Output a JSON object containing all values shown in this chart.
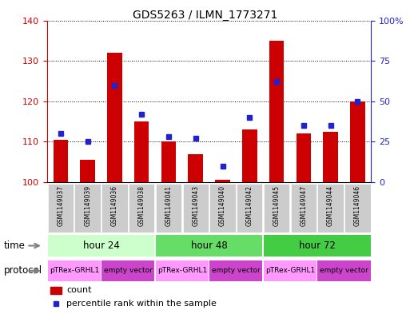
{
  "title": "GDS5263 / ILMN_1773271",
  "samples": [
    "GSM1149037",
    "GSM1149039",
    "GSM1149036",
    "GSM1149038",
    "GSM1149041",
    "GSM1149043",
    "GSM1149040",
    "GSM1149042",
    "GSM1149045",
    "GSM1149047",
    "GSM1149044",
    "GSM1149046"
  ],
  "counts": [
    110.5,
    105.5,
    132.0,
    115.0,
    110.0,
    107.0,
    100.5,
    113.0,
    135.0,
    112.0,
    112.5,
    120.0
  ],
  "percentiles": [
    30,
    25,
    60,
    42,
    28,
    27,
    10,
    40,
    62,
    35,
    35,
    50
  ],
  "ylim_left": [
    100,
    140
  ],
  "ylim_right": [
    0,
    100
  ],
  "yticks_left": [
    100,
    110,
    120,
    130,
    140
  ],
  "yticks_right": [
    0,
    25,
    50,
    75,
    100
  ],
  "bar_color": "#cc0000",
  "dot_color": "#2222cc",
  "time_groups": [
    {
      "label": "hour 24",
      "start": 0,
      "end": 4,
      "color": "#ccffcc"
    },
    {
      "label": "hour 48",
      "start": 4,
      "end": 8,
      "color": "#66dd66"
    },
    {
      "label": "hour 72",
      "start": 8,
      "end": 12,
      "color": "#44cc44"
    }
  ],
  "protocol_groups": [
    {
      "label": "pTRex-GRHL1",
      "start": 0,
      "end": 2,
      "color": "#ff99ff"
    },
    {
      "label": "empty vector",
      "start": 2,
      "end": 4,
      "color": "#cc44cc"
    },
    {
      "label": "pTRex-GRHL1",
      "start": 4,
      "end": 6,
      "color": "#ff99ff"
    },
    {
      "label": "empty vector",
      "start": 6,
      "end": 8,
      "color": "#cc44cc"
    },
    {
      "label": "pTRex-GRHL1",
      "start": 8,
      "end": 10,
      "color": "#ff99ff"
    },
    {
      "label": "empty vector",
      "start": 10,
      "end": 12,
      "color": "#cc44cc"
    }
  ],
  "sample_bg_color": "#cccccc",
  "fig_width": 5.13,
  "fig_height": 3.93,
  "dpi": 100
}
